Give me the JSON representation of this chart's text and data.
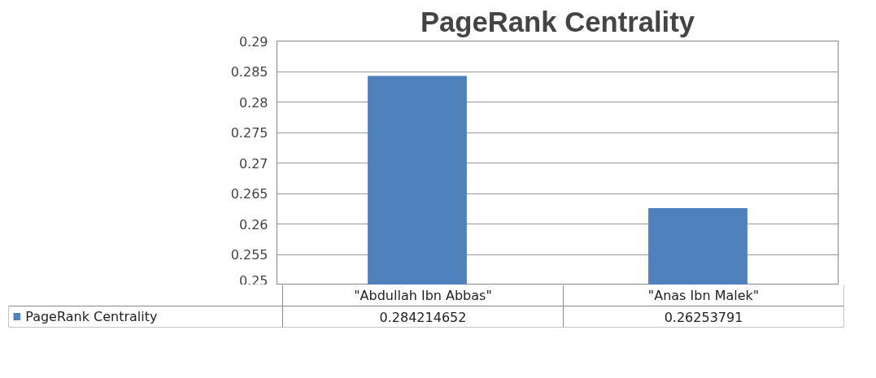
{
  "chart_data": {
    "type": "bar",
    "title": "PageRank Centrality",
    "categories": [
      "\"Abdullah Ibn Abbas\"",
      "\"Anas Ibn Malek\""
    ],
    "series": [
      {
        "name": "PageRank Centrality",
        "color": "#4f81bd",
        "values": [
          0.284214652,
          0.26253791
        ]
      }
    ],
    "ylim": [
      0.25,
      0.29
    ],
    "yticks": [
      0.25,
      0.255,
      0.26,
      0.265,
      0.27,
      0.275,
      0.28,
      0.285,
      0.29
    ],
    "grid": "y",
    "data_labels": true,
    "legend": "bottom"
  }
}
